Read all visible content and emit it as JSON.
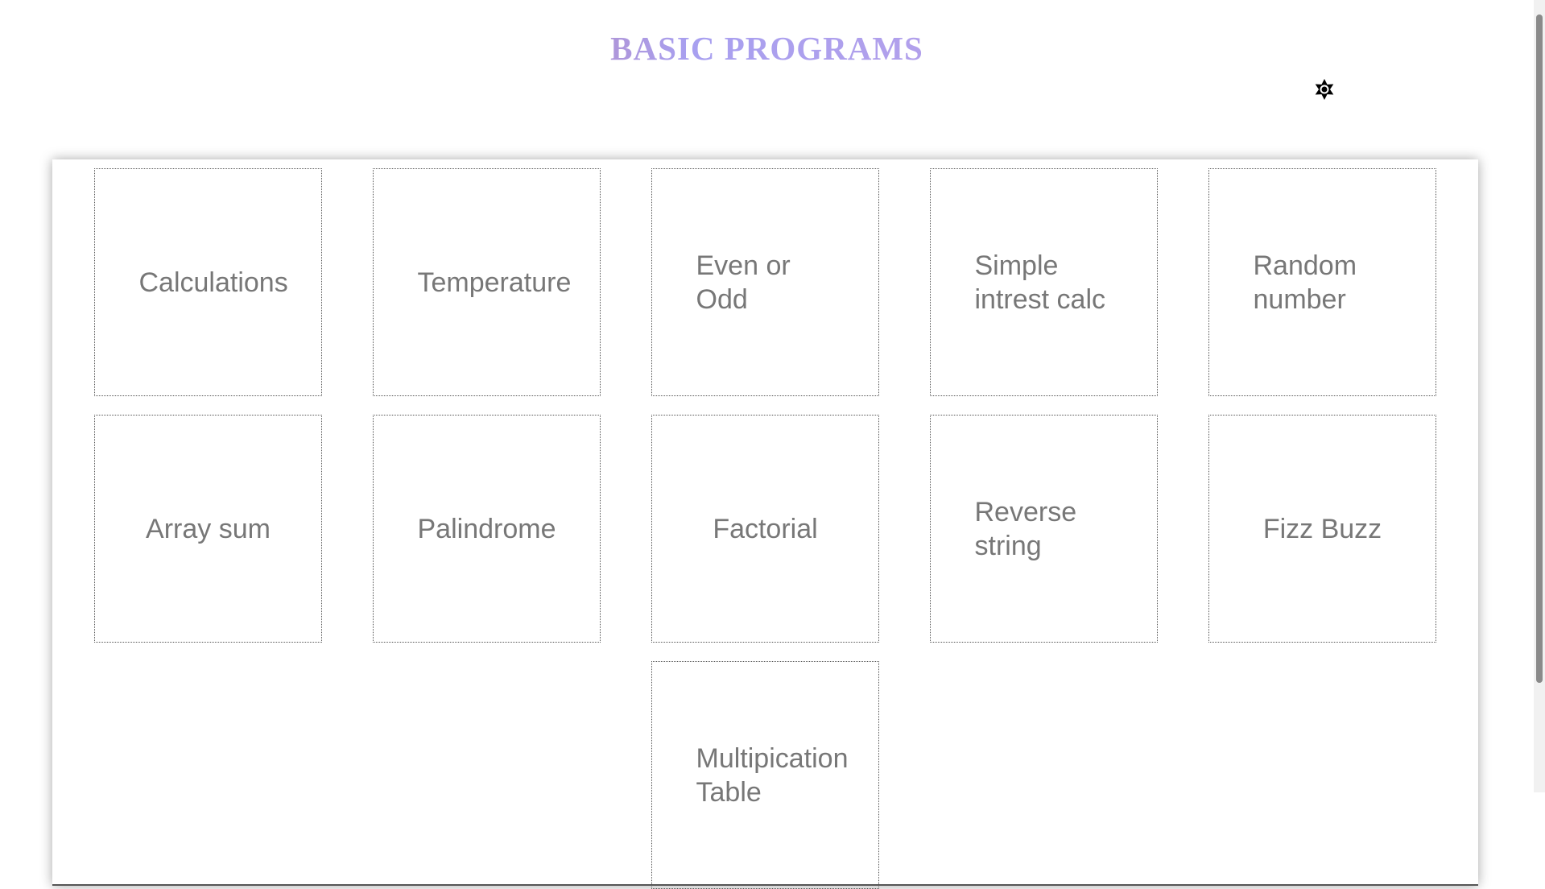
{
  "header": {
    "title": "BASIC PROGRAMS"
  },
  "cards": [
    "Calculations",
    "Temperature",
    "Even or Odd",
    "Simple intrest calc",
    "Random number",
    "Array sum",
    "Palindrome",
    "Factorial",
    "Reverse string",
    "Fizz Buzz",
    "Multipication Table"
  ]
}
